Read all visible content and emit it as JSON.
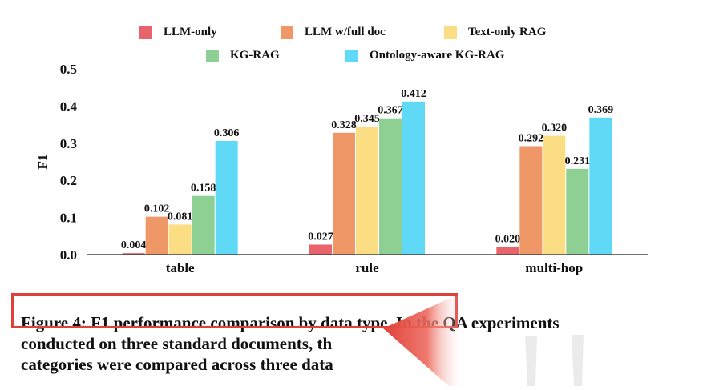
{
  "chart_data": {
    "type": "bar",
    "categories": [
      "table",
      "rule",
      "multi-hop"
    ],
    "ylabel": "F1",
    "xlabel": "",
    "ylim": [
      0,
      0.5
    ],
    "yticks": [
      "0.0",
      "0.1",
      "0.2",
      "0.3",
      "0.4",
      "0.5"
    ],
    "grid": false,
    "legend_position": "top",
    "series": [
      {
        "name": "LLM-only",
        "color": "#e8636b",
        "values": [
          0.004,
          0.027,
          0.02
        ],
        "labels": [
          "0.004",
          "0.027",
          "0.020"
        ]
      },
      {
        "name": "LLM w/full doc",
        "color": "#ef9766",
        "values": [
          0.102,
          0.328,
          0.292
        ],
        "labels": [
          "0.102",
          "0.328",
          "0.292"
        ]
      },
      {
        "name": "Text-only RAG",
        "color": "#fbdd83",
        "values": [
          0.081,
          0.345,
          0.32
        ],
        "labels": [
          "0.081",
          "0.345",
          "0.320"
        ]
      },
      {
        "name": "KG-RAG",
        "color": "#8ecf94",
        "values": [
          0.158,
          0.367,
          0.231
        ],
        "labels": [
          "0.158",
          "0.367",
          "0.231"
        ]
      },
      {
        "name": "Ontology-aware KG-RAG",
        "color": "#5fd9f5",
        "values": [
          0.306,
          0.412,
          0.369
        ],
        "labels": [
          "0.306",
          "0.412",
          "0.369"
        ]
      }
    ]
  },
  "caption": {
    "line1": "Figure 4: F1 performance comparison by data type. In the QA experiments",
    "line2": "conducted on three standard documents, th",
    "line3": "categories were compared across three data"
  },
  "colors": {
    "highlight": "#e0403a"
  }
}
